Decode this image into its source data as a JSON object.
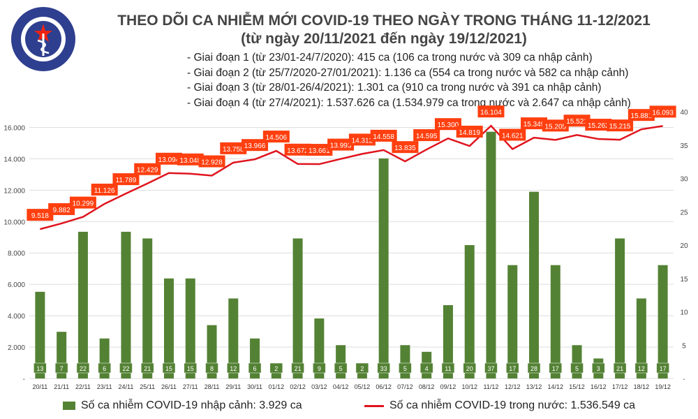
{
  "logo_text": "BỘ Y TẾ MINISTRY OF HEALTH",
  "title_line1": "THEO DÕI CA NHIỄM MỚI COVID-19 THEO NGÀY TRONG THÁNG 11-12/2021",
  "title_line2": "(từ ngày 20/11/2021 đến ngày 19/12/2021)",
  "notes": [
    "- Giai đoạn 1 (từ 23/01-24/7/2020): 415 ca (106 ca trong nước và 309 ca nhập cảnh)",
    "- Giai đoạn 2 (từ 25/7/2020-27/01/2021): 1.136 ca (554 ca trong nước và 582 ca nhập cảnh)",
    "- Giai đoạn 3 (từ 28/01-26/4/2021): 1.301 ca (910 ca trong nước và 391 ca nhập cảnh)",
    "- Giai đoạn 4 (từ 27/4/2021): 1.537.626 ca (1.534.979 ca trong nước và 2.647 ca nhập cảnh)"
  ],
  "colors": {
    "bar": "#548235",
    "line": "#e0141e",
    "label_bg": "#ff3f0f"
  },
  "chart_data": {
    "type": "bar+line",
    "categories": [
      "20/11",
      "21/11",
      "22/11",
      "23/11",
      "24/11",
      "25/11",
      "26/11",
      "27/11",
      "28/11",
      "29/11",
      "30/11",
      "01/12",
      "02/12",
      "03/12",
      "04/12",
      "05/12",
      "06/12",
      "07/12",
      "08/12",
      "09/12",
      "10/12",
      "11/12",
      "12/12",
      "13/12",
      "14/12",
      "15/12",
      "16/12",
      "17/12",
      "18/12",
      "19/12"
    ],
    "series": [
      {
        "name": "Số ca nhiễm COVID-19 nhập cảnh: 3.929 ca",
        "type": "bar",
        "axis": "right",
        "values": [
          13,
          7,
          22,
          6,
          22,
          21,
          15,
          15,
          8,
          12,
          6,
          2,
          21,
          9,
          5,
          2,
          33,
          5,
          4,
          11,
          20,
          37,
          17,
          28,
          17,
          5,
          3,
          21,
          12,
          17
        ]
      },
      {
        "name": "Số ca nhiễm COVID-19 trong nước: 1.536.549 ca",
        "type": "line",
        "axis": "left",
        "values": [
          9518,
          9882,
          10299,
          11126,
          11789,
          12429,
          13094,
          13048,
          12928,
          13758,
          13966,
          14506,
          13672,
          13661,
          13993,
          14312,
          14558,
          13835,
          14595,
          15300,
          14819,
          16104,
          14621,
          15349,
          15205,
          15521,
          15262,
          15215,
          15881,
          16093
        ],
        "labels": [
          "9.518",
          "9.882",
          "10.299",
          "11.126",
          "11.789",
          "12.429",
          "13.094",
          "13.048",
          "12.928",
          "13.758",
          "13.966",
          "14.506",
          "13.672",
          "13.661",
          "13.993",
          "14.312",
          "14.558",
          "13.835",
          "14.595",
          "15.300",
          "14.819",
          "16.104",
          "14.621",
          "15.349",
          "15.205",
          "15.521",
          "15.262",
          "15.215",
          "15.881",
          "16.093"
        ]
      }
    ],
    "left_axis": {
      "ylim": [
        0,
        17000
      ],
      "ticks": [
        "-",
        "2.000",
        "4.000",
        "6.000",
        "8.000",
        "10.000",
        "12.000",
        "14.000",
        "16.000"
      ]
    },
    "right_axis": {
      "ylim": [
        0,
        40
      ],
      "ticks": [
        "-",
        "5",
        "10",
        "15",
        "20",
        "25",
        "30",
        "35",
        "40"
      ]
    },
    "grid": true,
    "legend_placement": "bottom"
  }
}
